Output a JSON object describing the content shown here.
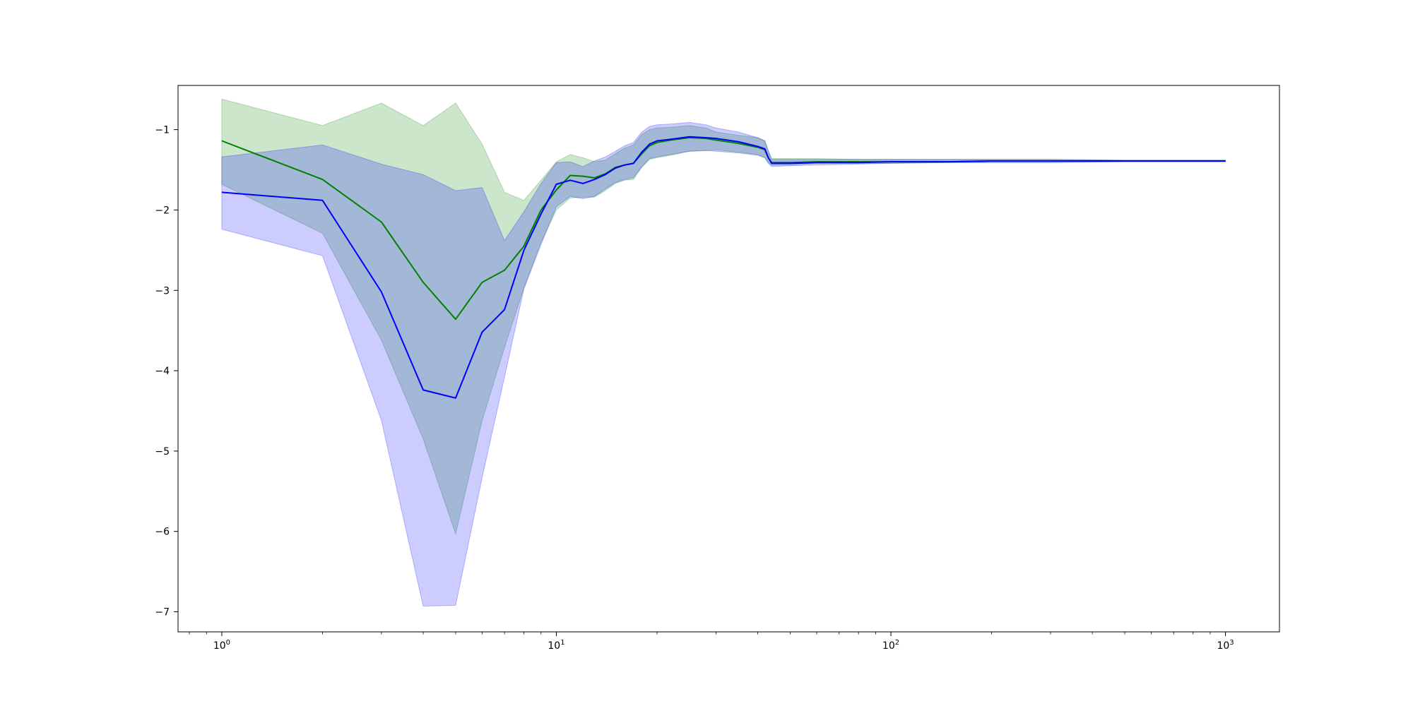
{
  "chart_data": {
    "type": "line",
    "title": "",
    "xlabel": "",
    "ylabel": "",
    "x_scale": "log",
    "xlim": [
      0.74,
      1450
    ],
    "ylim": [
      -7.25,
      -0.45
    ],
    "grid": false,
    "legend": "none",
    "x_ticks": [
      {
        "base": "10",
        "exp": "0",
        "value": 1
      },
      {
        "base": "10",
        "exp": "1",
        "value": 10
      },
      {
        "base": "10",
        "exp": "2",
        "value": 100
      },
      {
        "base": "10",
        "exp": "3",
        "value": 1000
      }
    ],
    "y_ticks": [
      {
        "label": "−1",
        "value": -1
      },
      {
        "label": "−2",
        "value": -2
      },
      {
        "label": "−3",
        "value": -3
      },
      {
        "label": "−4",
        "value": -4
      },
      {
        "label": "−5",
        "value": -5
      },
      {
        "label": "−6",
        "value": -6
      },
      {
        "label": "−7",
        "value": -7
      }
    ],
    "series": [
      {
        "color": "#008000",
        "band_color": "#008000",
        "band_opacity": 0.2,
        "x": [
          1,
          2,
          3,
          4,
          5,
          6,
          7,
          8,
          9,
          10,
          11,
          12,
          13,
          14,
          15,
          16,
          17,
          18,
          19,
          20,
          22,
          25,
          28,
          30,
          35,
          40,
          42,
          43,
          44,
          50,
          60,
          80,
          100,
          150,
          200,
          300,
          500,
          1000
        ],
        "y": [
          -1.14,
          -1.62,
          -2.15,
          -2.9,
          -3.36,
          -2.9,
          -2.75,
          -2.45,
          -2.0,
          -1.75,
          -1.57,
          -1.58,
          -1.6,
          -1.55,
          -1.47,
          -1.44,
          -1.42,
          -1.3,
          -1.2,
          -1.16,
          -1.13,
          -1.1,
          -1.11,
          -1.13,
          -1.17,
          -1.22,
          -1.25,
          -1.35,
          -1.41,
          -1.41,
          -1.4,
          -1.4,
          -1.4,
          -1.4,
          -1.39,
          -1.39,
          -1.39,
          -1.39
        ],
        "upper": [
          -0.62,
          -0.95,
          -0.67,
          -0.95,
          -0.67,
          -1.18,
          -1.78,
          -1.88,
          -1.63,
          -1.4,
          -1.31,
          -1.35,
          -1.4,
          -1.38,
          -1.3,
          -1.23,
          -1.19,
          -1.06,
          -1.0,
          -0.98,
          -0.97,
          -0.95,
          -0.98,
          -1.03,
          -1.07,
          -1.1,
          -1.14,
          -1.27,
          -1.36,
          -1.36,
          -1.36,
          -1.37,
          -1.37,
          -1.37,
          -1.37,
          -1.37,
          -1.38,
          -1.38
        ],
        "lower": [
          -1.68,
          -2.29,
          -3.62,
          -4.85,
          -6.03,
          -4.62,
          -3.71,
          -2.97,
          -2.4,
          -2.0,
          -1.85,
          -1.84,
          -1.84,
          -1.76,
          -1.67,
          -1.63,
          -1.62,
          -1.47,
          -1.37,
          -1.35,
          -1.32,
          -1.27,
          -1.26,
          -1.25,
          -1.28,
          -1.31,
          -1.35,
          -1.41,
          -1.44,
          -1.44,
          -1.42,
          -1.42,
          -1.42,
          -1.41,
          -1.41,
          -1.41,
          -1.4,
          -1.4
        ]
      },
      {
        "color": "#0000ff",
        "band_color": "#0000ff",
        "band_opacity": 0.2,
        "x": [
          1,
          2,
          3,
          4,
          5,
          6,
          7,
          8,
          9,
          10,
          11,
          12,
          13,
          14,
          15,
          16,
          17,
          18,
          19,
          20,
          22,
          25,
          28,
          30,
          35,
          40,
          42,
          43,
          44,
          50,
          60,
          80,
          100,
          150,
          200,
          300,
          500,
          1000
        ],
        "y": [
          -1.78,
          -1.88,
          -3.02,
          -4.24,
          -4.34,
          -3.52,
          -3.24,
          -2.5,
          -2.05,
          -1.68,
          -1.63,
          -1.67,
          -1.62,
          -1.56,
          -1.48,
          -1.44,
          -1.42,
          -1.28,
          -1.18,
          -1.14,
          -1.12,
          -1.09,
          -1.1,
          -1.11,
          -1.15,
          -1.21,
          -1.24,
          -1.35,
          -1.42,
          -1.42,
          -1.41,
          -1.41,
          -1.4,
          -1.4,
          -1.39,
          -1.39,
          -1.39,
          -1.39
        ],
        "upper": [
          -1.34,
          -1.19,
          -1.43,
          -1.56,
          -1.76,
          -1.72,
          -2.38,
          -2.02,
          -1.67,
          -1.41,
          -1.4,
          -1.46,
          -1.39,
          -1.34,
          -1.27,
          -1.2,
          -1.16,
          -1.03,
          -0.96,
          -0.94,
          -0.93,
          -0.91,
          -0.94,
          -0.98,
          -1.03,
          -1.1,
          -1.14,
          -1.26,
          -1.37,
          -1.37,
          -1.37,
          -1.37,
          -1.37,
          -1.37,
          -1.37,
          -1.37,
          -1.38,
          -1.38
        ],
        "lower": [
          -2.24,
          -2.57,
          -4.62,
          -6.93,
          -6.92,
          -5.33,
          -4.08,
          -2.98,
          -2.43,
          -1.96,
          -1.83,
          -1.86,
          -1.83,
          -1.74,
          -1.66,
          -1.62,
          -1.6,
          -1.46,
          -1.36,
          -1.34,
          -1.31,
          -1.27,
          -1.26,
          -1.27,
          -1.29,
          -1.32,
          -1.35,
          -1.42,
          -1.46,
          -1.45,
          -1.44,
          -1.43,
          -1.42,
          -1.41,
          -1.41,
          -1.41,
          -1.4,
          -1.4
        ]
      }
    ]
  }
}
